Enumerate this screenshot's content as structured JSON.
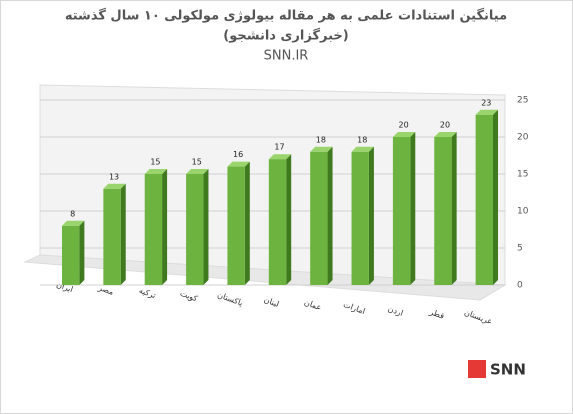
{
  "chart_data": {
    "type": "bar",
    "title": "میانگین استنادات علمی به هر مقاله بیولوژی مولکولی ۱۰ سال گذشته",
    "subtitle": "(خبرگزاری دانشجو)",
    "source": "SNN.IR",
    "watermark": "SNN",
    "categories": [
      "ایران",
      "مصر",
      "ترکیه",
      "کویت",
      "پاکستان",
      "لبنان",
      "عمان",
      "امارات",
      "اردن",
      "قطر",
      "عربستان"
    ],
    "values": [
      8,
      13,
      15,
      15,
      16,
      17,
      18,
      18,
      20,
      20,
      23
    ],
    "color": "#6db33f",
    "ylim": [
      0,
      25
    ],
    "yticks": [
      0,
      5,
      10,
      15,
      20,
      25
    ],
    "grid": true
  }
}
